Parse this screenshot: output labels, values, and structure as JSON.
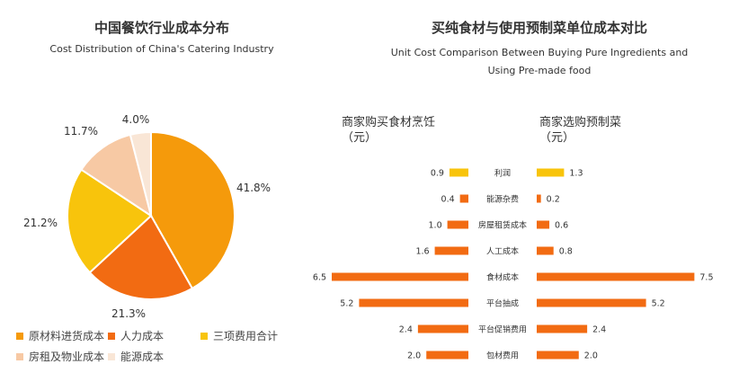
{
  "chart_data": [
    {
      "type": "pie",
      "title": "中国餐饮行业成本分布",
      "subtitle": "Cost Distribution of China's Catering Industry",
      "slices": [
        {
          "label": "原材料进货成本",
          "value": 41.8,
          "display": "41.8%",
          "color": "#F59A0B"
        },
        {
          "label": "人力成本",
          "value": 21.3,
          "display": "21.3%",
          "color": "#F26B12"
        },
        {
          "label": "三项费用合计",
          "value": 21.2,
          "display": "21.2%",
          "color": "#F8C40C"
        },
        {
          "label": "房租及物业成本",
          "value": 11.7,
          "display": "11.7%",
          "color": "#F7C9A4"
        },
        {
          "label": "能源成本",
          "value": 4.0,
          "display": "4.0%",
          "color": "#F9E6D6"
        }
      ],
      "legend_position": "bottom"
    },
    {
      "type": "bar",
      "orientation": "horizontal-butterfly",
      "title": "买纯食材与使用预制菜单位成本对比",
      "subtitle_line1": "Unit Cost Comparison Between Buying Pure Ingredients and",
      "subtitle_line2": "Using Pre-made food",
      "left_header_line1": "商家购买食材烹饪",
      "left_header_line2": "（元）",
      "right_header_line1": "商家选购预制菜",
      "right_header_line2": "（元）",
      "categories": [
        "利润",
        "能源杂费",
        "房屋租赁成本",
        "人工成本",
        "食材成本",
        "平台抽成",
        "平台促销费用",
        "包材费用"
      ],
      "series": [
        {
          "values": [
            0.9,
            0.4,
            1.0,
            1.6,
            6.5,
            5.2,
            2.4,
            2.0
          ],
          "labels": [
            "0.9",
            "0.4",
            "1.0",
            "1.6",
            "6.5",
            "5.2",
            "2.4",
            "2.0"
          ]
        },
        {
          "values": [
            1.3,
            0.2,
            0.6,
            0.8,
            7.5,
            5.2,
            2.4,
            2.0
          ],
          "labels": [
            "1.3",
            "0.2",
            "0.6",
            "0.8",
            "7.5",
            "5.2",
            "2.4",
            "2.0"
          ]
        }
      ],
      "highlight_category": "利润",
      "colors": {
        "default": "#F26B12",
        "highlight": "#F8C40C"
      }
    }
  ]
}
